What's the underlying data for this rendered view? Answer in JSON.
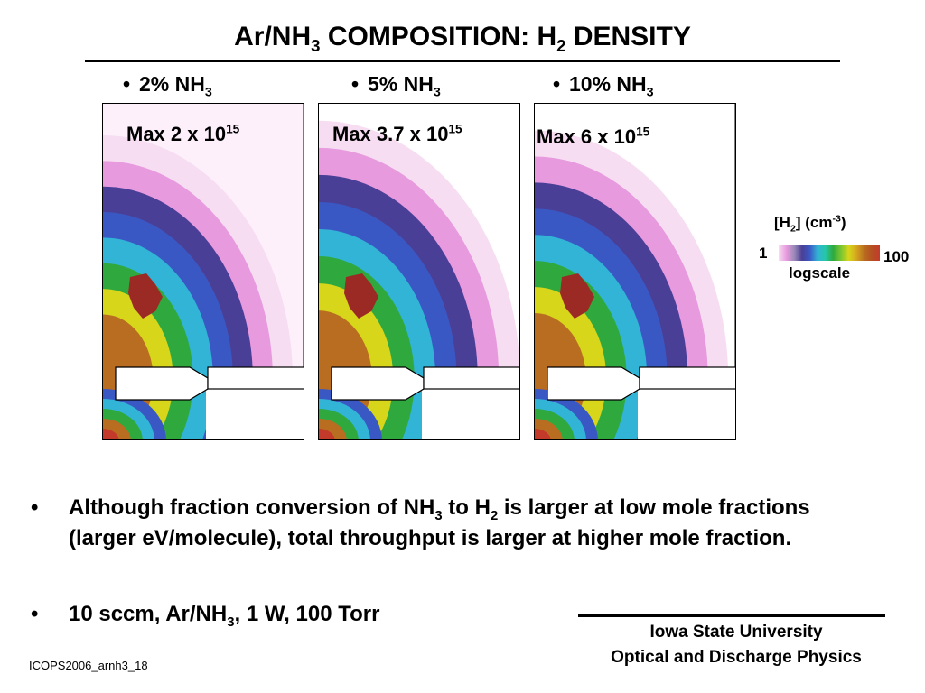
{
  "title": {
    "prefix": "Ar/NH",
    "sub1": "3",
    "middle": " COMPOSITION: H",
    "sub2": "2",
    "suffix": " DENSITY"
  },
  "columns": [
    {
      "bullet": "•",
      "label": "2% NH",
      "label_sub": "3",
      "max_prefix": "Max 2 x 10",
      "max_sup": "15"
    },
    {
      "bullet": "•",
      "label": "5% NH",
      "label_sub": "3",
      "max_prefix": "Max 3.7 x 10",
      "max_sup": "15"
    },
    {
      "bullet": "•",
      "label": "10% NH",
      "label_sub": "3",
      "max_prefix": "Max 6 x 10",
      "max_sup": "15"
    }
  ],
  "colorbar": {
    "title_a": "[H",
    "title_sub": "2",
    "title_b": "] (cm",
    "title_sup": "-3",
    "title_c": ")",
    "min_label": "1",
    "max_label": "100",
    "scale_label": "logscale",
    "colors": [
      "#f7ddf2",
      "#e79ade",
      "#4a3f96",
      "#3a58c4",
      "#32b4d6",
      "#2fa93e",
      "#d7d61b",
      "#b96d20",
      "#c43a2a"
    ]
  },
  "bullets": [
    {
      "dot": "•",
      "t1": "Although fraction conversion of NH",
      "s1": "3",
      "t2": " to H",
      "s2": "2",
      "t3": " is larger at low mole fractions (larger eV/molecule), total throughput is larger at higher mole fraction."
    },
    {
      "dot": "•",
      "t1": "10 sccm, Ar/NH",
      "s1": "3",
      "t2": ", 1 W, 100 Torr"
    }
  ],
  "affiliation": {
    "line1": "Iowa State University",
    "line2": "Optical and Discharge Physics"
  },
  "footer": "ICOPS2006_arnh3_18"
}
